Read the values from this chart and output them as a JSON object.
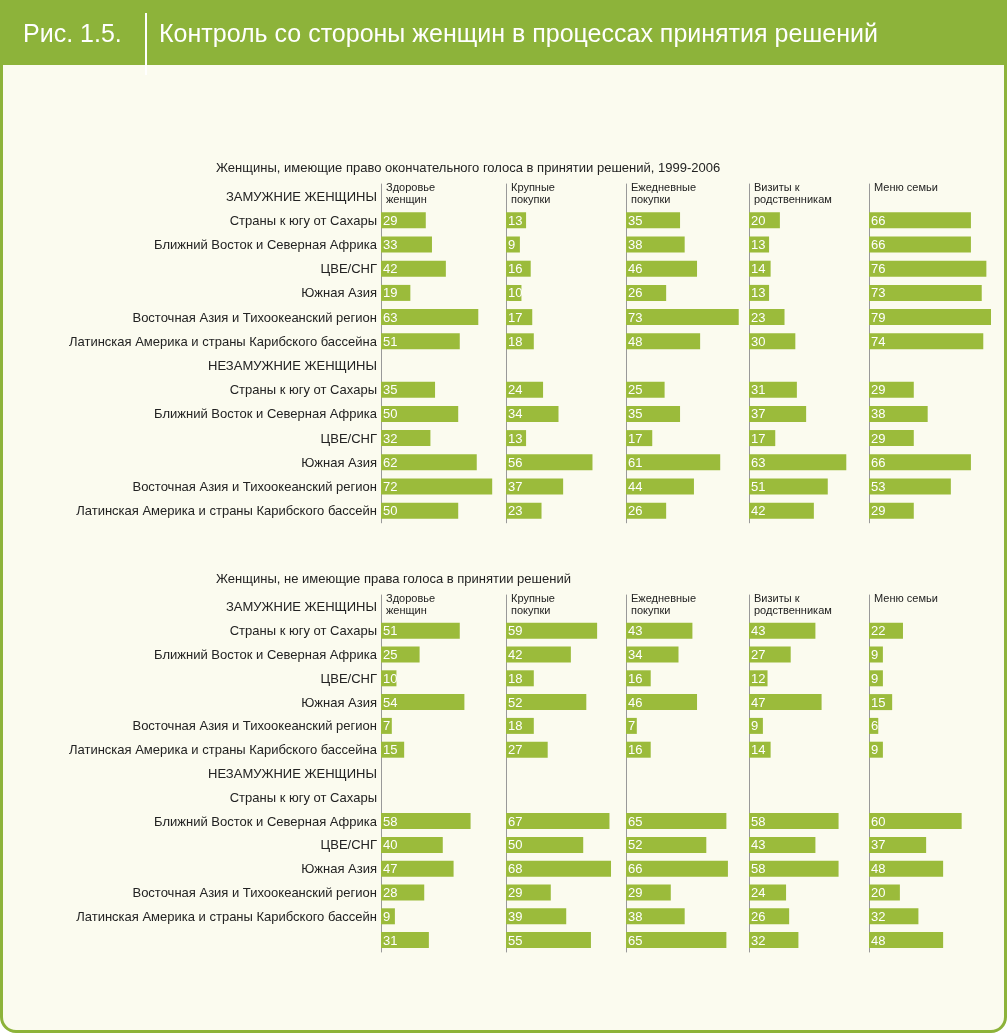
{
  "chart_data": [
    {
      "type": "bar",
      "orientation": "horizontal",
      "title": "Здоровье женщин",
      "subtitle": "Женщины, имеющие право окончательного голоса в принятии решений, 1999-2006",
      "annotations": [
        "Рис. 1.5.",
        "Контроль со стороны женщин в процессах принятия решений"
      ],
      "tick_labels": "y",
      "data_labels": true,
      "categories": [
        "ЗАМУЖНИЕ ЖЕНЩИНЫ",
        "Страны к югу от Сахары",
        "Ближний Восток и Северная Африка",
        "ЦВЕ/СНГ",
        "Южная Азия",
        "Восточная Азия и Тихоокеанский регион",
        "Латинская Америка и страны Карибского бассейна",
        "НЕЗАМУЖНИЕ ЖЕНЩИНЫ",
        "Страны к югу от Сахары",
        "Ближний Восток и Северная Африка",
        "ЦВЕ/СНГ",
        "Южная Азия",
        "Восточная Азия и Тихоокеанский регион",
        "Латинская Америка и страны Карибского бассейн"
      ],
      "series": [
        {
          "color": "#9bbb3b",
          "values": [
            null,
            29,
            33,
            42,
            19,
            63,
            51,
            null,
            35,
            50,
            32,
            62,
            72,
            50
          ]
        }
      ]
    },
    {
      "type": "bar",
      "orientation": "horizontal",
      "title": "Крупные покупки",
      "tick_labels": false,
      "data_labels": true,
      "categories": [
        "ЗАМУЖНИЕ ЖЕНЩИНЫ",
        "Страны к югу от Сахары",
        "Ближний Восток и Северная Африка",
        "ЦВЕ/СНГ",
        "Южная Азия",
        "Восточная Азия и Тихоокеанский регион",
        "Латинская Америка и страны Карибского бассейна",
        "НЕЗАМУЖНИЕ ЖЕНЩИНЫ",
        "Страны к югу от Сахары",
        "Ближний Восток и Северная Африка",
        "ЦВЕ/СНГ",
        "Южная Азия",
        "Восточная Азия и Тихоокеанский регион",
        "Латинская Америка и страны Карибского бассейн"
      ],
      "series": [
        {
          "color": "#9bbb3b",
          "values": [
            null,
            13,
            9,
            16,
            10,
            17,
            18,
            null,
            24,
            34,
            13,
            56,
            37,
            23
          ]
        }
      ]
    },
    {
      "type": "bar",
      "orientation": "horizontal",
      "title": "Ежедневные покупки",
      "tick_labels": false,
      "data_labels": true,
      "categories": [
        "ЗАМУЖНИЕ ЖЕНЩИНЫ",
        "Страны к югу от Сахары",
        "Ближний Восток и Северная Африка",
        "ЦВЕ/СНГ",
        "Южная Азия",
        "Восточная Азия и Тихоокеанский регион",
        "Латинская Америка и страны Карибского бассейна",
        "НЕЗАМУЖНИЕ ЖЕНЩИНЫ",
        "Страны к югу от Сахары",
        "Ближний Восток и Северная Африка",
        "ЦВЕ/СНГ",
        "Южная Азия",
        "Восточная Азия и Тихоокеанский регион",
        "Латинская Америка и страны Карибского бассейн"
      ],
      "series": [
        {
          "color": "#9bbb3b",
          "values": [
            null,
            35,
            38,
            46,
            26,
            73,
            48,
            null,
            25,
            35,
            17,
            61,
            44,
            26
          ]
        }
      ]
    },
    {
      "type": "bar",
      "orientation": "horizontal",
      "title": "Визиты к родственникам",
      "tick_labels": false,
      "data_labels": true,
      "categories": [
        "ЗАМУЖНИЕ ЖЕНЩИНЫ",
        "Страны к югу от Сахары",
        "Ближний Восток и Северная Африка",
        "ЦВЕ/СНГ",
        "Южная Азия",
        "Восточная Азия и Тихоокеанский регион",
        "Латинская Америка и страны Карибского бассейна",
        "НЕЗАМУЖНИЕ ЖЕНЩИНЫ",
        "Страны к югу от Сахары",
        "Ближний Восток и Северная Африка",
        "ЦВЕ/СНГ",
        "Южная Азия",
        "Восточная Азия и Тихоокеанский регион",
        "Латинская Америка и страны Карибского бассейн"
      ],
      "series": [
        {
          "color": "#9bbb3b",
          "values": [
            null,
            20,
            13,
            14,
            13,
            23,
            30,
            null,
            31,
            37,
            17,
            63,
            51,
            42
          ]
        }
      ]
    },
    {
      "type": "bar",
      "orientation": "horizontal",
      "title": "Меню семьи",
      "tick_labels": false,
      "data_labels": true,
      "categories": [
        "ЗАМУЖНИЕ ЖЕНЩИНЫ",
        "Страны к югу от Сахары",
        "Ближний Восток и Северная Африка",
        "ЦВЕ/СНГ",
        "Южная Азия",
        "Восточная Азия и Тихоокеанский регион",
        "Латинская Америка и страны Карибского бассейна",
        "НЕЗАМУЖНИЕ ЖЕНЩИНЫ",
        "Страны к югу от Сахары",
        "Ближний Восток и Северная Африка",
        "ЦВЕ/СНГ",
        "Южная Азия",
        "Восточная Азия и Тихоокеанский регион",
        "Латинская Америка и страны Карибского бассейн"
      ],
      "series": [
        {
          "color": "#9bbb3b",
          "values": [
            null,
            66,
            66,
            76,
            73,
            79,
            74,
            null,
            29,
            38,
            29,
            66,
            53,
            29
          ]
        }
      ]
    },
    {
      "type": "bar",
      "orientation": "horizontal",
      "title": "Здоровье женщин",
      "subtitle": "Женщины, не имеющие права голоса в принятии решений",
      "tick_labels": "y",
      "data_labels": true,
      "categories": [
        "ЗАМУЖНИЕ ЖЕНЩИНЫ",
        "Страны к югу от Сахары",
        "Ближний Восток и Северная Африка",
        "ЦВЕ/СНГ",
        "Южная Азия",
        "Восточная Азия и Тихоокеанский регион",
        "Латинская Америка и страны Карибского бассейна",
        "НЕЗАМУЖНИЕ ЖЕНЩИНЫ",
        "Страны к югу от Сахары",
        "Ближний Восток и Северная Африка",
        "ЦВЕ/СНГ",
        "Южная Азия",
        "Восточная Азия и Тихоокеанский регион",
        "Латинская Америка и страны Карибского бассейн",
        null
      ],
      "series": [
        {
          "color": "#9bbb3b",
          "values": [
            null,
            51,
            25,
            10,
            54,
            7,
            15,
            null,
            null,
            58,
            40,
            47,
            28,
            9,
            31
          ]
        }
      ]
    },
    {
      "type": "bar",
      "orientation": "horizontal",
      "title": "Крупные покупки",
      "tick_labels": false,
      "data_labels": true,
      "categories": [
        "ЗАМУЖНИЕ ЖЕНЩИНЫ",
        "Страны к югу от Сахары",
        "Ближний Восток и Северная Африка",
        "ЦВЕ/СНГ",
        "Южная Азия",
        "Восточная Азия и Тихоокеанский регион",
        "Латинская Америка и страны Карибского бассейна",
        "НЕЗАМУЖНИЕ ЖЕНЩИНЫ",
        "Страны к югу от Сахары",
        "Ближний Восток и Северная Африка",
        "ЦВЕ/СНГ",
        "Южная Азия",
        "Восточная Азия и Тихоокеанский регион",
        "Латинская Америка и страны Карибского бассейн",
        null
      ],
      "series": [
        {
          "color": "#9bbb3b",
          "values": [
            null,
            59,
            42,
            18,
            52,
            18,
            27,
            null,
            null,
            67,
            50,
            68,
            29,
            39,
            55
          ]
        }
      ]
    },
    {
      "type": "bar",
      "orientation": "horizontal",
      "title": "Ежедневные покупки",
      "tick_labels": false,
      "data_labels": true,
      "categories": [
        "ЗАМУЖНИЕ ЖЕНЩИНЫ",
        "Страны к югу от Сахары",
        "Ближний Восток и Северная Африка",
        "ЦВЕ/СНГ",
        "Южная Азия",
        "Восточная Азия и Тихоокеанский регион",
        "Латинская Америка и страны Карибского бассейна",
        "НЕЗАМУЖНИЕ ЖЕНЩИНЫ",
        "Страны к югу от Сахары",
        "Ближний Восток и Северная Африка",
        "ЦВЕ/СНГ",
        "Южная Азия",
        "Восточная Азия и Тихоокеанский регион",
        "Латинская Америка и страны Карибского бассейн",
        null
      ],
      "series": [
        {
          "color": "#9bbb3b",
          "values": [
            null,
            43,
            34,
            16,
            46,
            7,
            16,
            null,
            null,
            65,
            52,
            66,
            29,
            38,
            65
          ]
        }
      ]
    },
    {
      "type": "bar",
      "orientation": "horizontal",
      "title": "Визиты к родственникам",
      "tick_labels": false,
      "data_labels": true,
      "categories": [
        "ЗАМУЖНИЕ ЖЕНЩИНЫ",
        "Страны к югу от Сахары",
        "Ближний Восток и Северная Африка",
        "ЦВЕ/СНГ",
        "Южная Азия",
        "Восточная Азия и Тихоокеанский регион",
        "Латинская Америка и страны Карибского бассейна",
        "НЕЗАМУЖНИЕ ЖЕНЩИНЫ",
        "Страны к югу от Сахары",
        "Ближний Восток и Северная Африка",
        "ЦВЕ/СНГ",
        "Южная Азия",
        "Восточная Азия и Тихоокеанский регион",
        "Латинская Америка и страны Карибского бассейн",
        null
      ],
      "series": [
        {
          "color": "#9bbb3b",
          "values": [
            null,
            43,
            27,
            12,
            47,
            9,
            14,
            null,
            null,
            58,
            43,
            58,
            24,
            26,
            32
          ]
        }
      ]
    },
    {
      "type": "bar",
      "orientation": "horizontal",
      "title": "Меню семьи",
      "tick_labels": false,
      "data_labels": true,
      "categories": [
        "ЗАМУЖНИЕ ЖЕНЩИНЫ",
        "Страны к югу от Сахары",
        "Ближний Восток и Северная Африка",
        "ЦВЕ/СНГ",
        "Южная Азия",
        "Восточная Азия и Тихоокеанский регион",
        "Латинская Америка и страны Карибского бассейна",
        "НЕЗАМУЖНИЕ ЖЕНЩИНЫ",
        "Страны к югу от Сахары",
        "Ближний Восток и Северная Африка",
        "ЦВЕ/СНГ",
        "Южная Азия",
        "Восточная Азия и Тихоокеанский регион",
        "Латинская Америка и страны Карибского бассейн",
        null
      ],
      "series": [
        {
          "color": "#9bbb3b",
          "values": [
            null,
            22,
            9,
            9,
            15,
            6,
            9,
            null,
            null,
            60,
            37,
            48,
            20,
            32,
            48
          ]
        }
      ]
    }
  ]
}
